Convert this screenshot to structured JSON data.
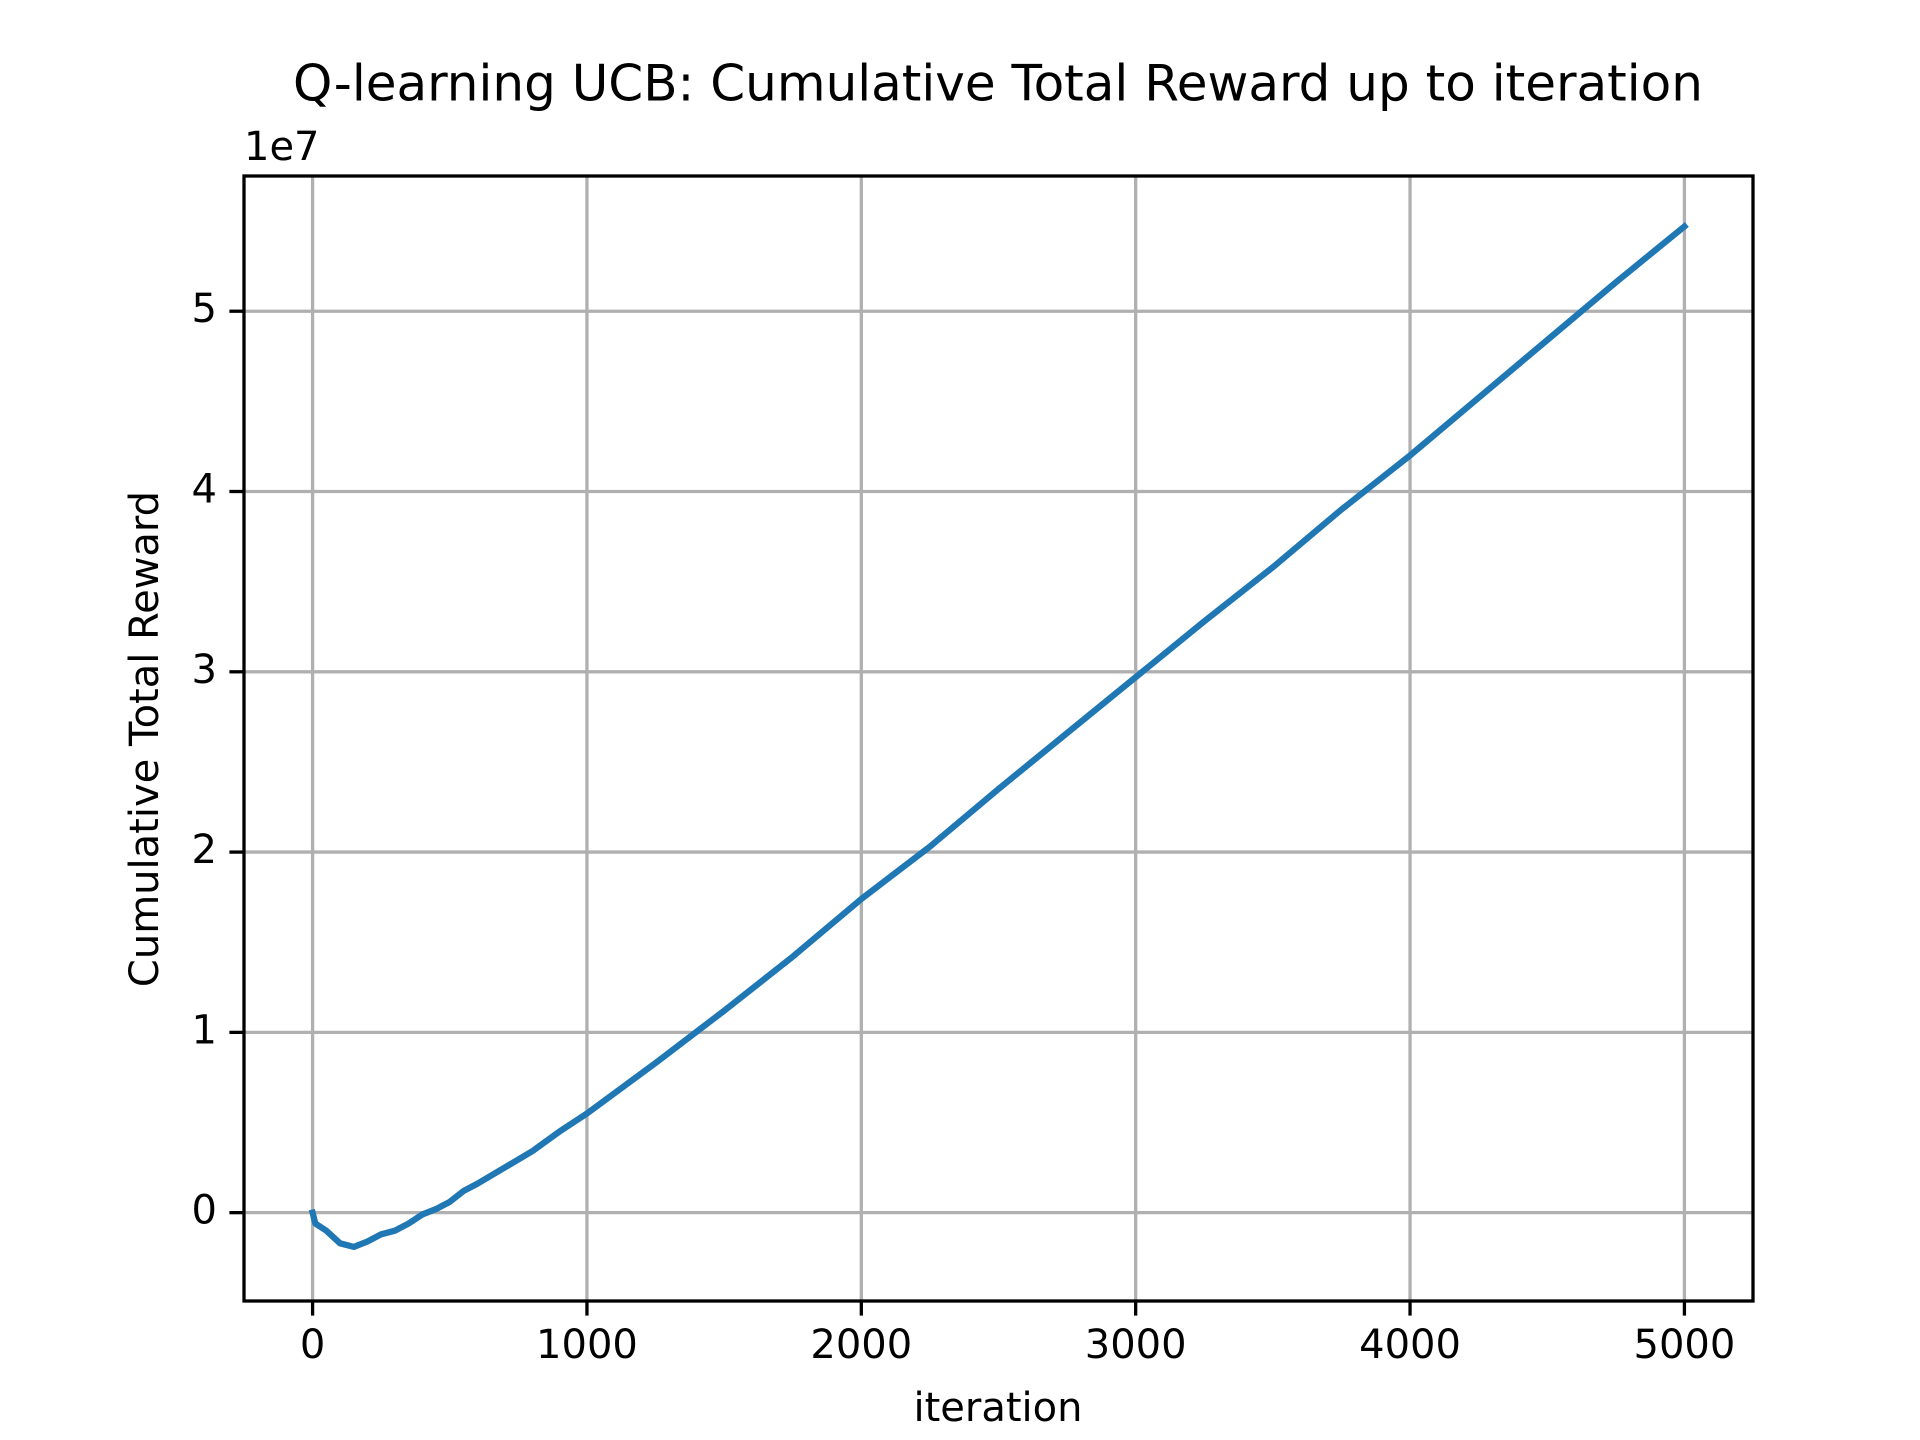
{
  "chart_data": {
    "type": "line",
    "title": "Q-learning UCB: Cumulative Total Reward up to iteration",
    "x_label": "iteration",
    "y_label": "Cumulative Total Reward",
    "y_offset_label": "1e7",
    "x": [
      0,
      10,
      50,
      100,
      150,
      200,
      250,
      300,
      350,
      400,
      450,
      500,
      550,
      600,
      700,
      800,
      900,
      1000,
      1250,
      1500,
      1750,
      2000,
      2250,
      2500,
      2750,
      3000,
      3250,
      3500,
      3750,
      4000,
      4250,
      4500,
      4750,
      5000
    ],
    "series": [
      {
        "name": "Cumulative Total Reward",
        "color": "#1f77b4",
        "values": [
          0,
          -0.06,
          -0.1,
          -0.17,
          -0.19,
          -0.16,
          -0.12,
          -0.1,
          -0.06,
          -0.01,
          0.02,
          0.06,
          0.12,
          0.16,
          0.25,
          0.34,
          0.45,
          0.55,
          0.83,
          1.12,
          1.42,
          1.74,
          2.03,
          2.35,
          2.66,
          2.97,
          3.28,
          3.58,
          3.9,
          4.2,
          4.52,
          4.84,
          5.16,
          5.47
        ]
      }
    ],
    "xlim": [
      -250,
      5250
    ],
    "ylim": [
      -0.49,
      5.75
    ],
    "xticks": [
      0,
      1000,
      2000,
      3000,
      4000,
      5000
    ],
    "yticks": [
      0,
      1,
      2,
      3,
      4,
      5
    ],
    "grid": true
  }
}
